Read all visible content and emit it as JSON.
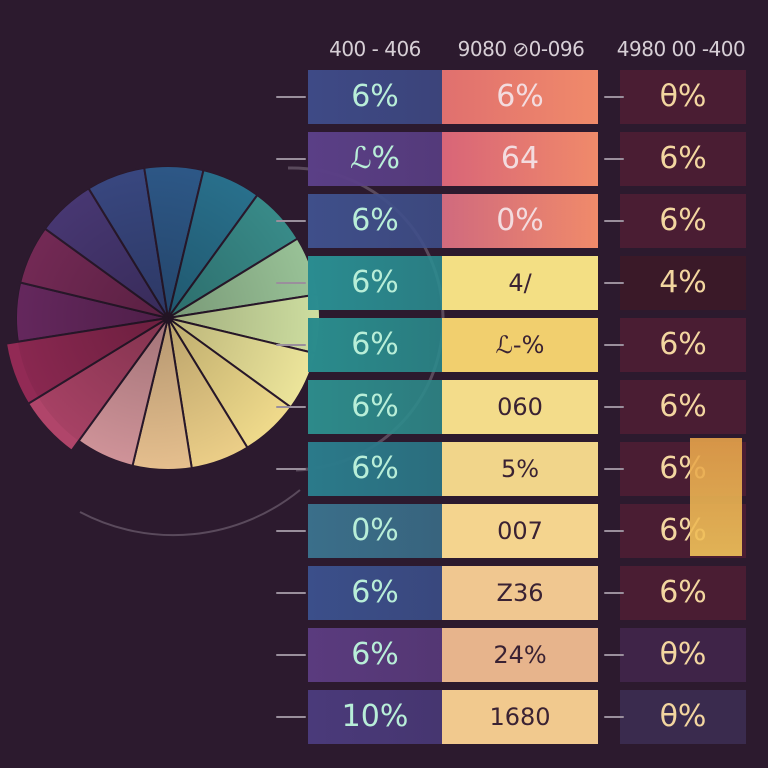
{
  "chart_data": [
    {
      "type": "pie",
      "slices": 16,
      "colors": [
        "#6b2a63",
        "#7a2c5a",
        "#4b3a78",
        "#3b4a85",
        "#2f5b8c",
        "#2a7390",
        "#3a8e8c",
        "#9cc69a",
        "#d2e2a3",
        "#f2ea9e",
        "#f6e08f",
        "#f3d58c",
        "#efc794",
        "#d99aa0",
        "#b0456a",
        "#922a55"
      ]
    },
    {
      "type": "table",
      "columns": [
        "400 - 406",
        "9080 ⊘0-096",
        "4980 00 -400"
      ],
      "rows": [
        [
          "6%",
          "6%",
          "θ%"
        ],
        [
          "ℒ%",
          "64",
          "6%"
        ],
        [
          "6%",
          "0%",
          "6%"
        ],
        [
          "6%",
          "4/",
          "4%"
        ],
        [
          "6%",
          "ℒ-%",
          "6%"
        ],
        [
          "6%",
          "060",
          "6%"
        ],
        [
          "6%",
          "5%",
          "6%"
        ],
        [
          "0%",
          "007",
          "6%"
        ],
        [
          "6%",
          "Z36",
          "6%"
        ],
        [
          "6%",
          "24%",
          "θ%"
        ],
        [
          "10%",
          "1680",
          "θ%"
        ]
      ]
    }
  ],
  "colors": {
    "background": "#2c1a2e",
    "col1": [
      "#3e4a86",
      "#5a3f86",
      "#3f4f8a",
      "#2a8c90",
      "#2a8b8c",
      "#2d8a8a",
      "#2b7a8a",
      "#3a6f8a",
      "#3b4f8a",
      "#5a3b7e",
      "#4a3a7a"
    ],
    "col2": [
      "#e0706f",
      "#d86578",
      "#d06a7e",
      "#f3df84",
      "#f1cf6e",
      "#f3dc8a",
      "#f1d58a",
      "#f4d48e",
      "#f0c790",
      "#e7b48c",
      "#f1c98e"
    ],
    "col3": [
      "#4a1d33",
      "#4a1d33",
      "#4a1d33",
      "#3a1928",
      "#4a1d33",
      "#4a1d33",
      "#4a1d33",
      "#4a1d33",
      "#4a1d33",
      "#3f2448",
      "#3a2b4e"
    ],
    "col3_text": [
      "#f3d6a0",
      "#f3d6a0",
      "#f3d6a0",
      "#f3d6a0",
      "#f3d6a0",
      "#f3d6a0",
      "#f3d6a0",
      "#f3d6a0",
      "#f3d6a0",
      "#f3d6a0",
      "#f3d6a0"
    ],
    "col1_text": "#b8eed8",
    "col2_text": "#3a2233",
    "col2_text_top": "#f3dcdf"
  }
}
